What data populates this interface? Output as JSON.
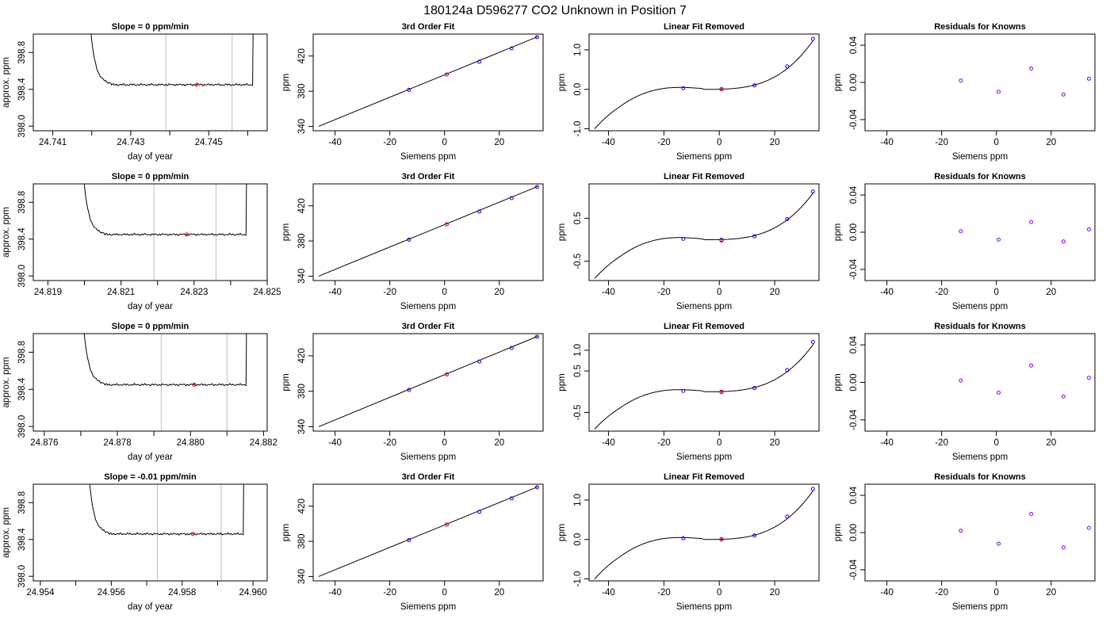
{
  "suptitle": "180124a     D596277   CO2 Unknown in Position  7",
  "colors": {
    "trace": "#000000",
    "unknown": "#ff0000",
    "known": "#0000ff",
    "residual": "#8000ff",
    "vline": "#bebebe"
  },
  "rows": [
    {
      "trace": {
        "title": "Slope =  0  ppm/min",
        "xlabel": "day of year",
        "ylabel": "approx. ppm",
        "xlim": [
          24.7405,
          24.7465
        ],
        "ylim": [
          397.95,
          399.0
        ],
        "xticks": [
          24.741,
          24.742,
          24.743,
          24.744,
          24.745,
          24.746
        ],
        "xtick_labels": [
          "24.741",
          "",
          "24.743",
          "",
          "24.745",
          ""
        ],
        "yticks": [
          398.0,
          398.4,
          398.8
        ],
        "ytick_labels": [
          "398.0",
          "398.4",
          "398.8"
        ],
        "start": 24.7418,
        "end": 24.7462,
        "base": 398.45,
        "vlines": [
          24.7439,
          24.7456
        ],
        "marker": [
          24.7447,
          398.45
        ]
      },
      "fit": {
        "title": "3rd Order Fit",
        "xlabel": "Siemens ppm",
        "ylabel": "ppm",
        "ylim": [
          335,
          445
        ],
        "yticks": [
          340,
          380,
          420
        ],
        "ytick_labels": [
          "340",
          "380",
          "420"
        ]
      },
      "lin": {
        "title": "Linear Fit Removed",
        "xlabel": "Siemens ppm",
        "ylabel": "ppm",
        "ylim": [
          -1.05,
          1.4
        ],
        "yticks": [
          -1.0,
          0.0,
          1.0
        ],
        "ytick_labels": [
          "-1.0",
          "0.0",
          "1.0"
        ],
        "residuals": [
          0.03,
          0.0,
          0.1,
          0.58,
          1.28
        ],
        "unknown": [
          0.8,
          0.01
        ],
        "curve_end": 1.25
      },
      "res": {
        "title": "Residuals for Knowns",
        "xlabel": "Siemens ppm",
        "ylabel": "ppm",
        "ylim": [
          -0.052,
          0.052
        ],
        "yticks": [
          -0.04,
          0.0,
          0.04
        ],
        "ytick_labels": [
          "-0.04",
          "0.00",
          "0.04"
        ],
        "values": [
          0.002,
          -0.01,
          0.015,
          -0.013,
          0.004
        ]
      }
    },
    {
      "trace": {
        "title": "Slope =  0  ppm/min",
        "xlabel": "day of year",
        "ylabel": "approx. ppm",
        "xlim": [
          24.8186,
          24.825
        ],
        "ylim": [
          397.95,
          399.0
        ],
        "xticks": [
          24.819,
          24.82,
          24.821,
          24.822,
          24.823,
          24.824,
          24.825
        ],
        "xtick_labels": [
          "24.819",
          "",
          "24.821",
          "",
          "24.823",
          "",
          "24.825"
        ],
        "yticks": [
          398.0,
          398.4,
          398.8
        ],
        "ytick_labels": [
          "398.0",
          "398.4",
          "398.8"
        ],
        "start": 24.8198,
        "end": 24.8245,
        "base": 398.45,
        "vlines": [
          24.8219,
          24.8236
        ],
        "marker": [
          24.8228,
          398.45
        ]
      },
      "fit": {
        "title": "3rd Order Fit",
        "xlabel": "Siemens ppm",
        "ylabel": "ppm",
        "ylim": [
          335,
          445
        ],
        "yticks": [
          340,
          380,
          420
        ],
        "ytick_labels": [
          "340",
          "380",
          "420"
        ]
      },
      "lin": {
        "title": "Linear Fit Removed",
        "xlabel": "Siemens ppm",
        "ylabel": "ppm",
        "ylim": [
          -0.95,
          1.3
        ],
        "yticks": [
          -0.5,
          0.5
        ],
        "ytick_labels": [
          "-0.5",
          "0.5"
        ],
        "residuals": [
          0.02,
          0.0,
          0.08,
          0.48,
          1.12
        ],
        "unknown": [
          0.8,
          -0.02
        ],
        "curve_end": 1.1
      },
      "res": {
        "title": "Residuals for Knowns",
        "xlabel": "Siemens ppm",
        "ylabel": "ppm",
        "ylim": [
          -0.052,
          0.052
        ],
        "yticks": [
          -0.04,
          0.0,
          0.04
        ],
        "ytick_labels": [
          "-0.04",
          "0.00",
          "0.04"
        ],
        "values": [
          0.001,
          -0.008,
          0.011,
          -0.01,
          0.003
        ]
      }
    },
    {
      "trace": {
        "title": "Slope =  0  ppm/min",
        "xlabel": "day of year",
        "ylabel": "approx. ppm",
        "xlim": [
          24.8757,
          24.8821
        ],
        "ylim": [
          397.95,
          399.0
        ],
        "xticks": [
          24.876,
          24.877,
          24.878,
          24.879,
          24.88,
          24.881,
          24.882
        ],
        "xtick_labels": [
          "24.876",
          "",
          "24.878",
          "",
          "24.880",
          "",
          "24.882"
        ],
        "yticks": [
          398.0,
          398.4,
          398.8
        ],
        "ytick_labels": [
          "398.0",
          "398.4",
          "398.8"
        ],
        "start": 24.8769,
        "end": 24.8816,
        "base": 398.45,
        "vlines": [
          24.8792,
          24.881
        ],
        "marker": [
          24.8801,
          398.45
        ]
      },
      "fit": {
        "title": "3rd Order Fit",
        "xlabel": "Siemens ppm",
        "ylabel": "ppm",
        "ylim": [
          335,
          445
        ],
        "yticks": [
          340,
          380,
          420
        ],
        "ytick_labels": [
          "340",
          "380",
          "420"
        ]
      },
      "lin": {
        "title": "Linear Fit Removed",
        "xlabel": "Siemens ppm",
        "ylabel": "ppm",
        "ylim": [
          -0.95,
          1.4
        ],
        "yticks": [
          -0.5,
          0.5,
          1.0
        ],
        "ytick_labels": [
          "-0.5",
          "0.5",
          "1.0"
        ],
        "residuals": [
          0.02,
          0.0,
          0.09,
          0.52,
          1.2
        ],
        "unknown": [
          0.8,
          -0.01
        ],
        "curve_end": 1.15
      },
      "res": {
        "title": "Residuals for Knowns",
        "xlabel": "Siemens ppm",
        "ylabel": "ppm",
        "ylim": [
          -0.052,
          0.052
        ],
        "yticks": [
          -0.04,
          0.0,
          0.04
        ],
        "ytick_labels": [
          "-0.04",
          "0.00",
          "0.04"
        ],
        "values": [
          0.002,
          -0.011,
          0.018,
          -0.015,
          0.005
        ]
      }
    },
    {
      "trace": {
        "title": "Slope =  -0.01  ppm/min",
        "xlabel": "day of year",
        "ylabel": "approx. ppm",
        "xlim": [
          24.9538,
          24.9604
        ],
        "ylim": [
          397.95,
          399.0
        ],
        "xticks": [
          24.954,
          24.955,
          24.956,
          24.957,
          24.958,
          24.959,
          24.96
        ],
        "xtick_labels": [
          "24.954",
          "",
          "24.956",
          "",
          "24.958",
          "",
          "24.960"
        ],
        "yticks": [
          398.0,
          398.4,
          398.8
        ],
        "ytick_labels": [
          "398.0",
          "398.4",
          "398.8"
        ],
        "start": 24.9552,
        "end": 24.9598,
        "base": 398.46,
        "vlines": [
          24.9573,
          24.9591
        ],
        "marker": [
          24.9583,
          398.46
        ]
      },
      "fit": {
        "title": "3rd Order Fit",
        "xlabel": "Siemens ppm",
        "ylabel": "ppm",
        "ylim": [
          335,
          445
        ],
        "yticks": [
          340,
          380,
          420
        ],
        "ytick_labels": [
          "340",
          "380",
          "420"
        ]
      },
      "lin": {
        "title": "Linear Fit Removed",
        "xlabel": "Siemens ppm",
        "ylabel": "ppm",
        "ylim": [
          -1.05,
          1.4
        ],
        "yticks": [
          -1.0,
          0.0,
          1.0
        ],
        "ytick_labels": [
          "-1.0",
          "0.0",
          "1.0"
        ],
        "residuals": [
          0.03,
          0.0,
          0.1,
          0.58,
          1.28
        ],
        "unknown": [
          0.8,
          0.01
        ],
        "curve_end": 1.25
      },
      "res": {
        "title": "Residuals for Knowns",
        "xlabel": "Siemens ppm",
        "ylabel": "ppm",
        "ylim": [
          -0.052,
          0.052
        ],
        "yticks": [
          -0.04,
          0.0,
          0.04
        ],
        "ytick_labels": [
          "-0.04",
          "0.00",
          "0.04"
        ],
        "values": [
          0.002,
          -0.012,
          0.02,
          -0.016,
          0.005
        ]
      }
    }
  ],
  "shared": {
    "fit_xlim": [
      -48,
      36
    ],
    "fit_xticks": [
      -40,
      -20,
      0,
      20
    ],
    "fit_xtick_labels": [
      "-40",
      "-20",
      "0",
      "20"
    ],
    "known_x": [
      -13.0,
      0.8,
      12.7,
      24.5,
      33.8
    ],
    "fit_known_y": [
      381.5,
      399.0,
      413.5,
      428.8,
      441.5
    ],
    "fit_unknown_y": 399.0,
    "fit_line": [
      [
        -46,
        340
      ],
      [
        34,
        442
      ]
    ],
    "lin_xlim": [
      -47,
      36
    ],
    "lin_curve_start": -45,
    "res_xlim": [
      -48,
      36
    ]
  },
  "chart_data": [
    {
      "type": "line",
      "title": "Slope =  0  ppm/min",
      "xlabel": "day of year",
      "ylabel": "approx. ppm",
      "series": [
        {
          "x": [
            24.7418,
            24.7425,
            24.744,
            24.7447,
            24.746,
            24.7462
          ],
          "values": [
            399.0,
            398.5,
            398.45,
            398.45,
            398.44,
            399.0
          ]
        }
      ]
    },
    {
      "type": "scatter",
      "title": "3rd Order Fit",
      "xlabel": "Siemens ppm",
      "ylabel": "ppm",
      "series": [
        {
          "x": [
            -13.0,
            0.8,
            12.7,
            24.5,
            33.8
          ],
          "values": [
            381.5,
            399.0,
            413.5,
            428.8,
            441.5
          ]
        }
      ]
    },
    {
      "type": "scatter",
      "title": "Linear Fit Removed",
      "xlabel": "Siemens ppm",
      "ylabel": "ppm",
      "series": [
        {
          "x": [
            -13.0,
            0.8,
            12.7,
            24.5,
            33.8
          ],
          "values": [
            0.03,
            0.0,
            0.1,
            0.58,
            1.28
          ]
        }
      ]
    },
    {
      "type": "scatter",
      "title": "Residuals for Knowns",
      "xlabel": "Siemens ppm",
      "ylabel": "ppm",
      "series": [
        {
          "x": [
            -13.0,
            0.8,
            12.7,
            24.5,
            33.8
          ],
          "values": [
            0.002,
            -0.01,
            0.015,
            -0.013,
            0.004
          ]
        }
      ]
    }
  ]
}
